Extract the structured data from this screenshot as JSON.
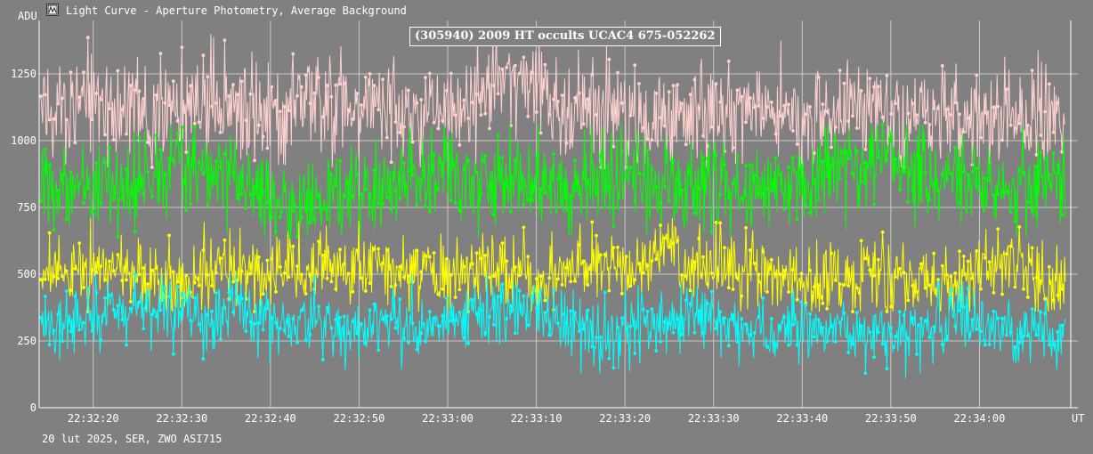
{
  "window": {
    "title": "Light Curve - Aperture Photometry, Average Background",
    "icon": "light-curve-app-icon"
  },
  "footer": {
    "caption": "20 lut 2025, SER, ZWO ASI715"
  },
  "chart_data": {
    "type": "line",
    "title": "(305940) 2009 HT occults UCAC4 675-052262",
    "ylabel": "ADU",
    "xlabel": "UT",
    "ylim": [
      0,
      1450
    ],
    "y_ticks": [
      0,
      250,
      500,
      750,
      1000,
      1250
    ],
    "x_range": [
      "22:32:13.9",
      "22:34:10.3"
    ],
    "x_ticks": [
      "22:32:20",
      "22:32:30",
      "22:32:40",
      "22:32:50",
      "22:33:00",
      "22:33:10",
      "22:33:20",
      "22:33:30",
      "22:33:40",
      "22:33:50",
      "22:34:00"
    ],
    "grid": true,
    "legend": "none",
    "frames": 1200,
    "series": [
      {
        "color": "#ffd0d0",
        "mean": 1120,
        "noise": 95,
        "min": 900,
        "max": 1425
      },
      {
        "color": "#00ff00",
        "mean": 840,
        "noise": 85,
        "min": 640,
        "max": 1060
      },
      {
        "color": "#ffff00",
        "mean": 500,
        "noise": 70,
        "min": 360,
        "max": 710
      },
      {
        "color": "#00ffff",
        "mean": 320,
        "noise": 60,
        "min": 80,
        "max": 500
      }
    ]
  }
}
